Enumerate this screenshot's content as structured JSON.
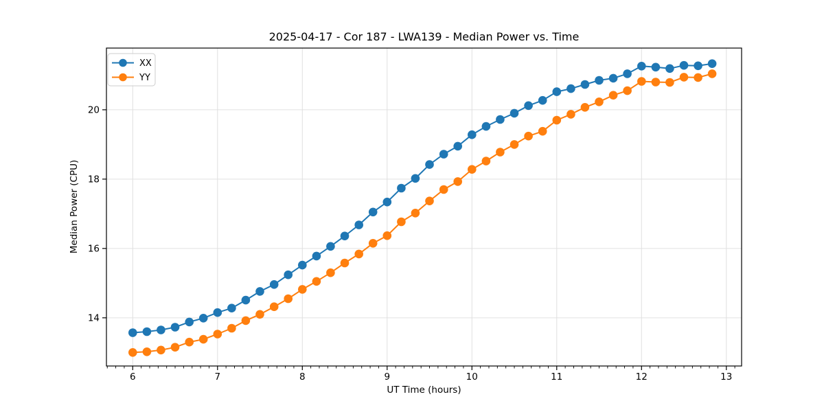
{
  "chart_data": {
    "type": "line",
    "title": "2025-04-17 - Cor 187 - LWA139 - Median Power vs. Time",
    "xlabel": "UT Time (hours)",
    "ylabel": "Median Power (CPU)",
    "xlim": [
      5.69,
      13.18
    ],
    "ylim": [
      12.61,
      21.78
    ],
    "x_ticks": [
      6,
      7,
      8,
      9,
      10,
      11,
      12,
      13
    ],
    "y_ticks": [
      14,
      16,
      18,
      20
    ],
    "x_minor_tick_step": 0.1,
    "grid": true,
    "grid_color": "#e0e0e0",
    "legend_position": "upper left",
    "x": [
      6.0,
      6.167,
      6.333,
      6.5,
      6.667,
      6.833,
      7.0,
      7.167,
      7.333,
      7.5,
      7.667,
      7.833,
      8.0,
      8.167,
      8.333,
      8.5,
      8.667,
      8.833,
      9.0,
      9.167,
      9.333,
      9.5,
      9.667,
      9.833,
      10.0,
      10.167,
      10.333,
      10.5,
      10.667,
      10.833,
      11.0,
      11.167,
      11.333,
      11.5,
      11.667,
      11.833,
      12.0,
      12.167,
      12.333,
      12.5,
      12.667,
      12.833
    ],
    "series": [
      {
        "name": "XX",
        "color": "#1f77b4",
        "values": [
          13.57,
          13.6,
          13.65,
          13.73,
          13.88,
          13.99,
          14.15,
          14.28,
          14.51,
          14.76,
          14.96,
          15.24,
          15.52,
          15.78,
          16.06,
          16.36,
          16.68,
          17.05,
          17.34,
          17.74,
          18.02,
          18.42,
          18.72,
          18.95,
          19.28,
          19.52,
          19.72,
          19.9,
          20.12,
          20.27,
          20.52,
          20.61,
          20.73,
          20.85,
          20.91,
          21.04,
          21.26,
          21.23,
          21.19,
          21.28,
          21.27,
          21.33
        ]
      },
      {
        "name": "YY",
        "color": "#ff7f0e",
        "values": [
          13.0,
          13.02,
          13.07,
          13.15,
          13.3,
          13.38,
          13.53,
          13.7,
          13.92,
          14.1,
          14.32,
          14.55,
          14.82,
          15.05,
          15.3,
          15.58,
          15.84,
          16.15,
          16.37,
          16.77,
          17.02,
          17.37,
          17.7,
          17.93,
          18.28,
          18.52,
          18.78,
          19.0,
          19.24,
          19.38,
          19.7,
          19.87,
          20.07,
          20.23,
          20.42,
          20.55,
          20.82,
          20.8,
          20.79,
          20.94,
          20.93,
          21.04
        ]
      }
    ]
  }
}
